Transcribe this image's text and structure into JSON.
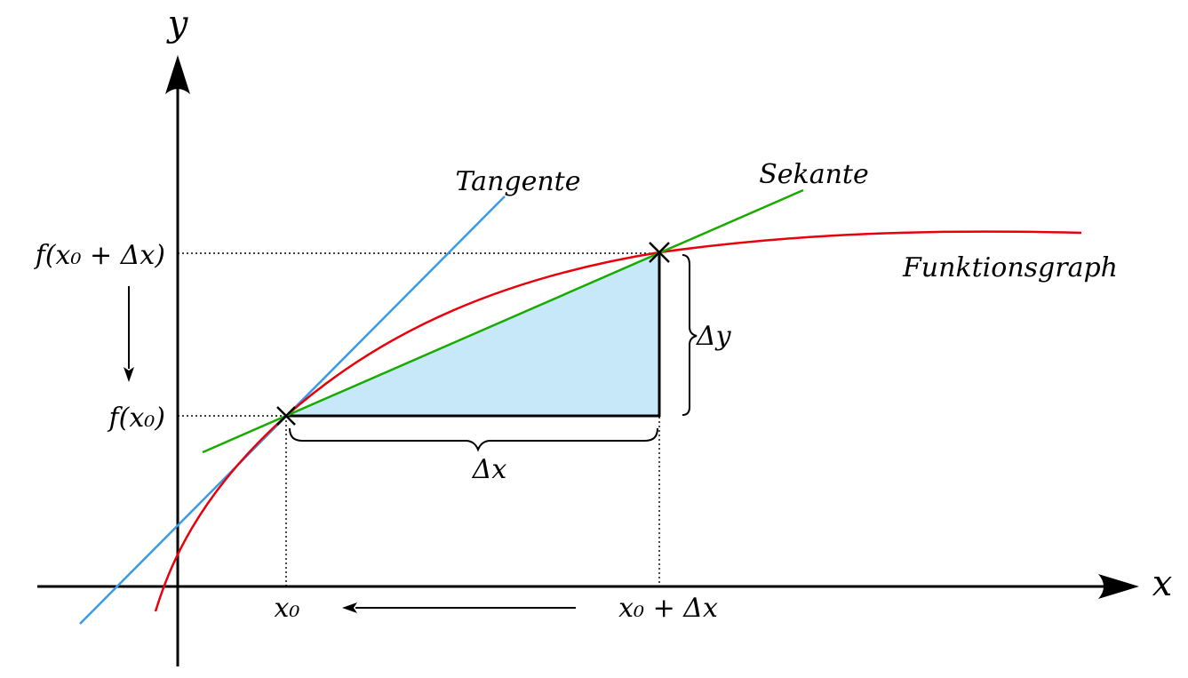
{
  "labels": {
    "axis_x": "x",
    "axis_y": "y",
    "f_x0_dx": "f(x₀ + Δx)",
    "f_x0": "f(x₀)",
    "x0": "x₀",
    "x0_dx": "x₀ + Δx",
    "delta_x": "Δx",
    "delta_y": "Δy",
    "tangente": "Tangente",
    "sekante": "Sekante",
    "funktionsgraph": "Funktionsgraph"
  },
  "colors": {
    "function_curve": "#e8000b",
    "tangent_line": "#3a9ae6",
    "secant_line": "#1aab00",
    "triangle_fill": "#c6e8f8",
    "axes": "#000000"
  }
}
